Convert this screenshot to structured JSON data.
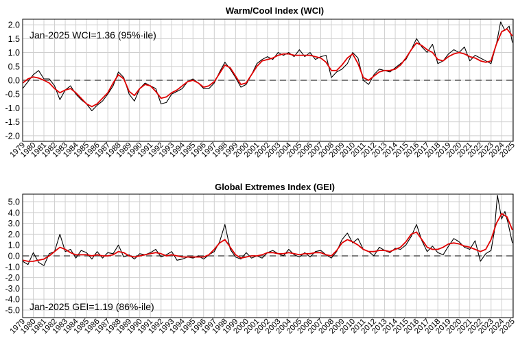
{
  "chart_data": [
    {
      "type": "line",
      "title": "Warm/Cool Index (WCI)",
      "annotation": "Jan-2025 WCI=1.36 (95%-ile)",
      "annotation_position": "top-left",
      "xlabel": "",
      "ylabel": "",
      "xlim": [
        1979,
        2025.08
      ],
      "ylim": [
        -2.2,
        2.2
      ],
      "yticks": [
        2.0,
        1.5,
        1.0,
        0.5,
        0.0,
        -0.5,
        -1.0,
        -1.5,
        -2.0
      ],
      "yticklabels": [
        "2.0",
        "1.5",
        "1.0",
        "0.5",
        "0.0",
        "-0.5",
        "-1.0",
        "-1.5",
        "-2.0"
      ],
      "xticklabels": [
        "1979",
        "1980",
        "1981",
        "1982",
        "1983",
        "1984",
        "1985",
        "1986",
        "1987",
        "1988",
        "1989",
        "1990",
        "1991",
        "1992",
        "1993",
        "1994",
        "1995",
        "1996",
        "1997",
        "1998",
        "1999",
        "2000",
        "2001",
        "2002",
        "2003",
        "2004",
        "2005",
        "2006",
        "2007",
        "2008",
        "2009",
        "2010",
        "2011",
        "2012",
        "2013",
        "2014",
        "2015",
        "2016",
        "2017",
        "2018",
        "2019",
        "2020",
        "2021",
        "2022",
        "2023",
        "2024",
        "2025"
      ],
      "grid": true,
      "reference_line": 0.0,
      "colors": {
        "monthly": "#000000",
        "smoothed": "#e00000",
        "reference": "#555555",
        "grid": "#cfcfcf"
      },
      "series": [
        {
          "name": "monthly",
          "x": [
            1979.0,
            1979.5,
            1980.0,
            1980.5,
            1981.0,
            1981.5,
            1982.0,
            1982.5,
            1983.0,
            1983.5,
            1984.0,
            1984.5,
            1985.0,
            1985.5,
            1986.0,
            1986.5,
            1987.0,
            1987.5,
            1988.0,
            1988.5,
            1989.0,
            1989.5,
            1990.0,
            1990.5,
            1991.0,
            1991.5,
            1992.0,
            1992.5,
            1993.0,
            1993.5,
            1994.0,
            1994.5,
            1995.0,
            1995.5,
            1996.0,
            1996.5,
            1997.0,
            1997.5,
            1998.0,
            1998.5,
            1999.0,
            1999.5,
            2000.0,
            2000.5,
            2001.0,
            2001.5,
            2002.0,
            2002.5,
            2003.0,
            2003.5,
            2004.0,
            2004.5,
            2005.0,
            2005.5,
            2006.0,
            2006.5,
            2007.0,
            2007.5,
            2008.0,
            2008.5,
            2009.0,
            2009.5,
            2010.0,
            2010.5,
            2011.0,
            2011.5,
            2012.0,
            2012.5,
            2013.0,
            2013.5,
            2014.0,
            2014.5,
            2015.0,
            2015.5,
            2016.0,
            2016.5,
            2017.0,
            2017.5,
            2018.0,
            2018.5,
            2019.0,
            2019.5,
            2020.0,
            2020.5,
            2021.0,
            2021.5,
            2022.0,
            2022.5,
            2023.0,
            2023.5,
            2023.9,
            2024.3,
            2024.7,
            2025.0
          ],
          "y": [
            -0.3,
            -0.05,
            0.2,
            0.35,
            0.05,
            0.05,
            -0.2,
            -0.7,
            -0.35,
            -0.2,
            -0.5,
            -0.7,
            -0.85,
            -1.1,
            -0.9,
            -0.75,
            -0.5,
            -0.2,
            0.3,
            0.1,
            -0.5,
            -0.75,
            -0.3,
            -0.1,
            -0.2,
            -0.3,
            -0.85,
            -0.8,
            -0.5,
            -0.4,
            -0.3,
            -0.05,
            0.05,
            -0.1,
            -0.3,
            -0.3,
            -0.1,
            0.3,
            0.65,
            0.4,
            0.1,
            -0.25,
            -0.15,
            0.2,
            0.6,
            0.75,
            0.85,
            0.75,
            1.0,
            0.9,
            1.0,
            0.85,
            1.1,
            0.85,
            1.0,
            0.75,
            0.85,
            0.9,
            0.1,
            0.3,
            0.4,
            0.6,
            1.0,
            0.8,
            0.0,
            -0.15,
            0.2,
            0.4,
            0.35,
            0.3,
            0.45,
            0.6,
            0.75,
            1.1,
            1.5,
            1.2,
            1.0,
            1.3,
            0.6,
            0.7,
            0.95,
            1.1,
            1.0,
            1.2,
            0.7,
            0.9,
            0.8,
            0.7,
            0.6,
            1.3,
            2.1,
            1.8,
            1.95,
            1.36
          ]
        },
        {
          "name": "smoothed",
          "x": [
            1979.0,
            1979.5,
            1980.0,
            1980.5,
            1981.0,
            1981.5,
            1982.0,
            1982.5,
            1983.0,
            1983.5,
            1984.0,
            1984.5,
            1985.0,
            1985.5,
            1986.0,
            1986.5,
            1987.0,
            1987.5,
            1988.0,
            1988.5,
            1989.0,
            1989.5,
            1990.0,
            1990.5,
            1991.0,
            1991.5,
            1992.0,
            1992.5,
            1993.0,
            1993.5,
            1994.0,
            1994.5,
            1995.0,
            1995.5,
            1996.0,
            1996.5,
            1997.0,
            1997.5,
            1998.0,
            1998.5,
            1999.0,
            1999.5,
            2000.0,
            2000.5,
            2001.0,
            2001.5,
            2002.0,
            2002.5,
            2003.0,
            2003.5,
            2004.0,
            2004.5,
            2005.0,
            2005.5,
            2006.0,
            2006.5,
            2007.0,
            2007.5,
            2008.0,
            2008.5,
            2009.0,
            2009.5,
            2010.0,
            2010.5,
            2011.0,
            2011.5,
            2012.0,
            2012.5,
            2013.0,
            2013.5,
            2014.0,
            2014.5,
            2015.0,
            2015.5,
            2016.0,
            2016.5,
            2017.0,
            2017.5,
            2018.0,
            2018.5,
            2019.0,
            2019.5,
            2020.0,
            2020.5,
            2021.0,
            2021.5,
            2022.0,
            2022.5,
            2023.0,
            2023.5,
            2024.0,
            2024.5,
            2025.0
          ],
          "y": [
            -0.1,
            0.05,
            0.12,
            0.08,
            0.0,
            -0.1,
            -0.3,
            -0.45,
            -0.35,
            -0.3,
            -0.45,
            -0.65,
            -0.85,
            -0.95,
            -0.85,
            -0.65,
            -0.45,
            -0.1,
            0.2,
            0.05,
            -0.4,
            -0.55,
            -0.3,
            -0.15,
            -0.2,
            -0.4,
            -0.65,
            -0.6,
            -0.45,
            -0.35,
            -0.2,
            -0.05,
            0.0,
            -0.1,
            -0.25,
            -0.2,
            -0.05,
            0.25,
            0.55,
            0.45,
            0.15,
            -0.15,
            -0.1,
            0.2,
            0.5,
            0.7,
            0.75,
            0.8,
            0.9,
            0.95,
            0.95,
            0.9,
            0.9,
            0.9,
            0.9,
            0.85,
            0.8,
            0.65,
            0.35,
            0.35,
            0.55,
            0.8,
            0.95,
            0.6,
            0.1,
            0.0,
            0.15,
            0.3,
            0.35,
            0.35,
            0.4,
            0.55,
            0.8,
            1.1,
            1.35,
            1.25,
            1.1,
            1.0,
            0.75,
            0.7,
            0.85,
            0.95,
            1.0,
            0.95,
            0.85,
            0.8,
            0.7,
            0.65,
            0.7,
            1.3,
            1.75,
            1.85,
            1.6
          ]
        }
      ]
    },
    {
      "type": "line",
      "title": "Global Extremes Index (GEI)",
      "annotation": "Jan-2025 GEI=1.19 (86%-ile)",
      "annotation_position": "bottom-left",
      "xlabel": "",
      "ylabel": "",
      "xlim": [
        1979,
        2025.08
      ],
      "ylim": [
        -5.7,
        5.7
      ],
      "yticks": [
        5.0,
        4.0,
        3.0,
        2.0,
        1.0,
        0.0,
        -1.0,
        -2.0,
        -3.0,
        -4.0,
        -5.0
      ],
      "yticklabels": [
        "5.0",
        "4.0",
        "3.0",
        "2.0",
        "1.0",
        "0.0",
        "-1.0",
        "-2.0",
        "-3.0",
        "-4.0",
        "-5.0"
      ],
      "xticklabels": [
        "1979",
        "1980",
        "1981",
        "1982",
        "1983",
        "1984",
        "1985",
        "1986",
        "1987",
        "1988",
        "1989",
        "1990",
        "1991",
        "1992",
        "1993",
        "1994",
        "1995",
        "1996",
        "1997",
        "1998",
        "1999",
        "2000",
        "2001",
        "2002",
        "2003",
        "2004",
        "2005",
        "2006",
        "2007",
        "2008",
        "2009",
        "2010",
        "2011",
        "2012",
        "2013",
        "2014",
        "2015",
        "2016",
        "2017",
        "2018",
        "2019",
        "2020",
        "2021",
        "2022",
        "2023",
        "2024",
        "2025"
      ],
      "grid": true,
      "reference_line": 0.0,
      "colors": {
        "monthly": "#000000",
        "smoothed": "#e00000",
        "reference": "#555555",
        "grid": "#cfcfcf"
      },
      "series": [
        {
          "name": "monthly",
          "x": [
            1979.0,
            1979.5,
            1980.0,
            1980.5,
            1981.0,
            1981.5,
            1982.0,
            1982.5,
            1983.0,
            1983.5,
            1984.0,
            1984.5,
            1985.0,
            1985.5,
            1986.0,
            1986.5,
            1987.0,
            1987.5,
            1988.0,
            1988.5,
            1989.0,
            1989.5,
            1990.0,
            1990.5,
            1991.0,
            1991.5,
            1992.0,
            1992.5,
            1993.0,
            1993.5,
            1994.0,
            1994.5,
            1995.0,
            1995.5,
            1996.0,
            1996.5,
            1997.0,
            1997.5,
            1998.0,
            1998.5,
            1999.0,
            1999.5,
            2000.0,
            2000.5,
            2001.0,
            2001.5,
            2002.0,
            2002.5,
            2003.0,
            2003.5,
            2004.0,
            2004.5,
            2005.0,
            2005.5,
            2006.0,
            2006.5,
            2007.0,
            2007.5,
            2008.0,
            2008.5,
            2009.0,
            2009.5,
            2010.0,
            2010.5,
            2011.0,
            2011.5,
            2012.0,
            2012.5,
            2013.0,
            2013.5,
            2014.0,
            2014.5,
            2015.0,
            2015.5,
            2016.0,
            2016.5,
            2017.0,
            2017.5,
            2018.0,
            2018.5,
            2019.0,
            2019.5,
            2020.0,
            2020.5,
            2021.0,
            2021.5,
            2022.0,
            2022.5,
            2023.0,
            2023.3,
            2023.6,
            2024.0,
            2024.3,
            2024.6,
            2025.0
          ],
          "y": [
            -0.5,
            -0.8,
            0.3,
            -0.6,
            -0.9,
            0.2,
            0.4,
            2.0,
            0.4,
            0.6,
            -0.2,
            0.5,
            0.3,
            -0.3,
            0.4,
            -0.2,
            0.3,
            0.2,
            1.0,
            -0.1,
            0.1,
            -0.3,
            0.2,
            0.1,
            0.3,
            0.6,
            -0.1,
            0.1,
            0.4,
            -0.4,
            -0.3,
            -0.1,
            -0.2,
            0.0,
            -0.3,
            0.1,
            0.4,
            1.3,
            2.9,
            0.6,
            -0.1,
            -0.3,
            0.3,
            -0.2,
            0.0,
            -0.2,
            0.3,
            0.5,
            0.2,
            0.0,
            0.6,
            0.1,
            -0.1,
            0.3,
            -0.1,
            0.4,
            0.5,
            0.1,
            -0.2,
            0.4,
            1.5,
            2.1,
            1.2,
            1.6,
            0.6,
            0.4,
            0.0,
            0.8,
            0.5,
            0.3,
            0.7,
            0.6,
            1.0,
            1.8,
            2.9,
            1.4,
            0.4,
            0.9,
            0.3,
            0.1,
            0.9,
            1.6,
            1.3,
            0.8,
            0.6,
            1.4,
            -0.5,
            0.2,
            0.5,
            2.2,
            5.6,
            3.4,
            4.1,
            3.0,
            1.19
          ]
        },
        {
          "name": "smoothed",
          "x": [
            1979.0,
            1979.5,
            1980.0,
            1980.5,
            1981.0,
            1981.5,
            1982.0,
            1982.5,
            1983.0,
            1983.5,
            1984.0,
            1984.5,
            1985.0,
            1985.5,
            1986.0,
            1986.5,
            1987.0,
            1987.5,
            1988.0,
            1988.5,
            1989.0,
            1989.5,
            1990.0,
            1990.5,
            1991.0,
            1991.5,
            1992.0,
            1992.5,
            1993.0,
            1993.5,
            1994.0,
            1994.5,
            1995.0,
            1995.5,
            1996.0,
            1996.5,
            1997.0,
            1997.5,
            1998.0,
            1998.5,
            1999.0,
            1999.5,
            2000.0,
            2000.5,
            2001.0,
            2001.5,
            2002.0,
            2002.5,
            2003.0,
            2003.5,
            2004.0,
            2004.5,
            2005.0,
            2005.5,
            2006.0,
            2006.5,
            2007.0,
            2007.5,
            2008.0,
            2008.5,
            2009.0,
            2009.5,
            2010.0,
            2010.5,
            2011.0,
            2011.5,
            2012.0,
            2012.5,
            2013.0,
            2013.5,
            2014.0,
            2014.5,
            2015.0,
            2015.5,
            2016.0,
            2016.5,
            2017.0,
            2017.5,
            2018.0,
            2018.5,
            2019.0,
            2019.5,
            2020.0,
            2020.5,
            2021.0,
            2021.5,
            2022.0,
            2022.5,
            2023.0,
            2023.5,
            2024.0,
            2024.5,
            2025.0
          ],
          "y": [
            -0.4,
            -0.5,
            -0.5,
            -0.4,
            -0.3,
            0.0,
            0.4,
            0.8,
            0.6,
            0.3,
            0.1,
            0.1,
            0.1,
            0.0,
            0.1,
            0.0,
            0.0,
            0.1,
            0.4,
            0.3,
            0.0,
            -0.1,
            0.0,
            0.1,
            0.2,
            0.3,
            0.2,
            0.0,
            0.1,
            0.0,
            -0.1,
            -0.1,
            -0.1,
            -0.1,
            -0.1,
            0.1,
            0.6,
            1.2,
            1.5,
            0.8,
            0.1,
            -0.2,
            -0.1,
            0.0,
            0.0,
            0.1,
            0.3,
            0.3,
            0.2,
            0.2,
            0.3,
            0.2,
            0.1,
            0.2,
            0.2,
            0.3,
            0.3,
            0.1,
            0.0,
            0.5,
            1.2,
            1.5,
            1.3,
            1.0,
            0.6,
            0.4,
            0.4,
            0.5,
            0.5,
            0.4,
            0.6,
            0.8,
            1.3,
            2.0,
            2.2,
            1.5,
            0.8,
            0.6,
            0.6,
            0.8,
            1.1,
            1.2,
            1.1,
            0.9,
            0.8,
            0.6,
            0.4,
            0.6,
            1.5,
            3.0,
            3.9,
            3.6,
            2.4
          ]
        }
      ]
    }
  ]
}
